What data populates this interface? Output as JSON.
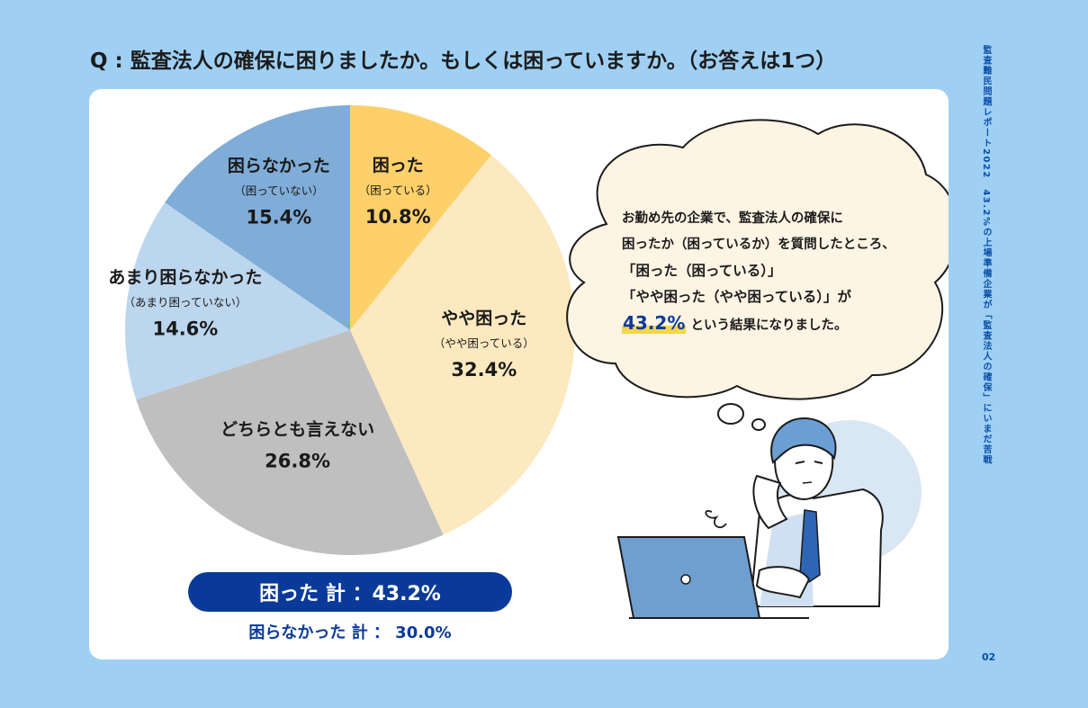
{
  "question": "Q : 監査法人の確保に困りましたか。もしくは困っていますか。（お答えは1つ）",
  "chart_data": {
    "type": "pie",
    "slices": [
      {
        "name": "困った",
        "sub": "（困っている）",
        "label": "10.8%",
        "value": 10.8,
        "color": "#fdd06a"
      },
      {
        "name": "やや困った",
        "sub": "（やや困っている）",
        "label": "32.4%",
        "value": 32.4,
        "color": "#fde9c0"
      },
      {
        "name": "どちらとも言えない",
        "sub": "",
        "label": "26.8%",
        "value": 26.8,
        "color": "#bfbfbf"
      },
      {
        "name": "あまり困らなかった",
        "sub": "（あまり困っていない）",
        "label": "14.6%",
        "value": 14.6,
        "color": "#bcd6ee"
      },
      {
        "name": "困らなかった",
        "sub": "（困っていない）",
        "label": "15.4%",
        "value": 15.4,
        "color": "#7fadd8"
      }
    ],
    "start": "top",
    "direction": "clockwise"
  },
  "totals": {
    "troubled": "困った 計 ：43.2%",
    "not_troubled": "困らなかった 計 ： 30.0%"
  },
  "bubble": {
    "line1": "お勤め先の企業で、監査法人の確保に",
    "line2": "困ったか（困っているか）を質問したところ、",
    "line3": "「困った（困っている）」",
    "line4": "「やや困った（やや困っている）」が",
    "pct": "43.2%",
    "line5_rest": "という結果になりました。"
  },
  "side_title": "監査難民問題レポート2022　43.2%の上場準備企業が「監査法人の確保」にいまだ苦戦",
  "page_number": "02",
  "colors": {
    "background": "#9fd0f3",
    "accent_navy": "#0a3a99",
    "highlight_yellow": "#f5d54a"
  }
}
